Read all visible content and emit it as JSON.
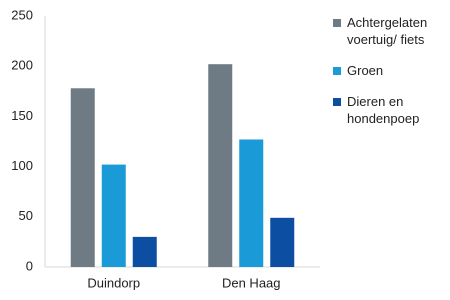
{
  "chart_data": {
    "type": "bar",
    "categories": [
      "Duindorp",
      "Den Haag"
    ],
    "series": [
      {
        "name": "Achtergelaten voertuig/ fiets",
        "color": "#6e7b84",
        "values": [
          178,
          202
        ]
      },
      {
        "name": "Groen",
        "color": "#1a9ad6",
        "values": [
          102,
          127
        ]
      },
      {
        "name": "Dieren en hondenpoep",
        "color": "#0b4ea2",
        "values": [
          30,
          49
        ]
      }
    ],
    "ylim": [
      0,
      250
    ],
    "yticks": [
      0,
      50,
      100,
      150,
      200,
      250
    ],
    "grid": false,
    "legend": "right"
  }
}
